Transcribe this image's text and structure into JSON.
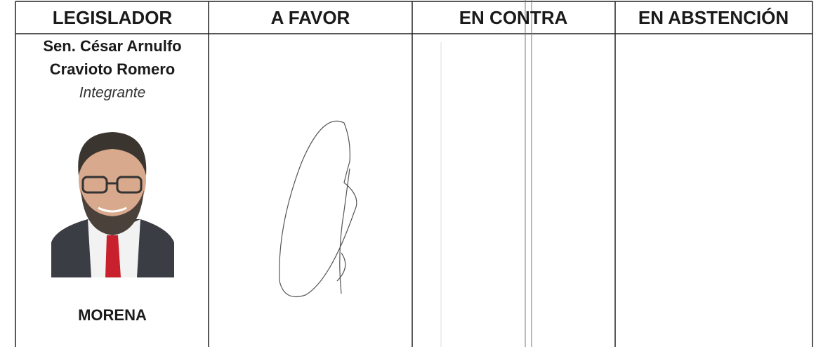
{
  "table": {
    "headers": [
      "LEGISLADOR",
      "A FAVOR",
      "EN CONTRA",
      "EN ABSTENCIÓN"
    ],
    "rows": [
      {
        "name": [
          "Sen. César Arnulfo",
          "Cravioto Romero"
        ],
        "role": "Integrante",
        "party": "MORENA"
      }
    ]
  }
}
